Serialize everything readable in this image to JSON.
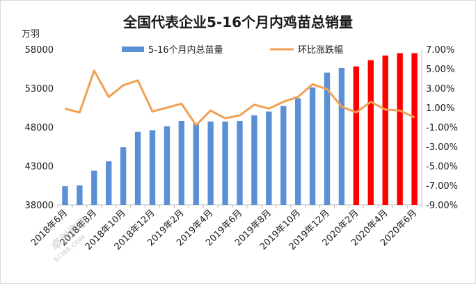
{
  "chart_data": {
    "type": "bar+line",
    "title": "全国代表企业5-16个月内鸡苗总销量",
    "ylabel_left": "万羽",
    "left_axis": {
      "min": 38000,
      "max": 58000,
      "ticks": [
        "38000",
        "43000",
        "48000",
        "53000",
        "58000"
      ]
    },
    "right_axis": {
      "min": -9,
      "max": 7,
      "ticks": [
        "-9.00%",
        "-7.00%",
        "-5.00%",
        "-3.00%",
        "-1.00%",
        "1.00%",
        "3.00%",
        "5.00%",
        "7.00%"
      ]
    },
    "categories": [
      "2018年6月",
      "2018年7月",
      "2018年8月",
      "2018年9月",
      "2018年10月",
      "2018年11月",
      "2018年12月",
      "2019年1月",
      "2019年2月",
      "2019年3月",
      "2019年4月",
      "2019年5月",
      "2019年6月",
      "2019年7月",
      "2019年8月",
      "2019年9月",
      "2019年10月",
      "2019年11月",
      "2019年12月",
      "2020年1月",
      "2020年2月",
      "2020年3月",
      "2020年4月",
      "2020年5月",
      "2020年6月"
    ],
    "x_tick_labels": [
      "2018年6月",
      "2018年8月",
      "2018年10月",
      "2018年12月",
      "2019年2月",
      "2019年4月",
      "2019年6月",
      "2019年8月",
      "2019年10月",
      "2019年12月",
      "2020年2月",
      "2020年4月",
      "2020年6月"
    ],
    "x_tick_indices": [
      0,
      2,
      4,
      6,
      8,
      10,
      12,
      14,
      16,
      18,
      20,
      22,
      24
    ],
    "series": [
      {
        "name": "5-16个月内总苗量",
        "axis": "left",
        "kind": "bar",
        "color": "#5b8fd6",
        "forecast_color": "#ff0000",
        "forecast_from_index": 20,
        "values": [
          40400,
          40500,
          42400,
          43600,
          45400,
          47400,
          47600,
          48100,
          48800,
          48500,
          48700,
          48700,
          48800,
          49500,
          50000,
          50700,
          51700,
          53100,
          55000,
          55600,
          55800,
          56600,
          57200,
          57500,
          57500
        ]
      },
      {
        "name": "环比涨跌幅",
        "axis": "right",
        "kind": "line",
        "color": "#f0a050",
        "values": [
          0.9,
          0.5,
          4.8,
          2.1,
          3.3,
          3.8,
          0.6,
          1.0,
          1.4,
          -0.8,
          0.7,
          -0.1,
          0.2,
          1.3,
          0.9,
          1.6,
          2.1,
          3.4,
          2.9,
          1.1,
          0.5,
          1.6,
          0.8,
          0.7,
          0.0
        ]
      }
    ]
  },
  "watermark": {
    "line1": "卓创资讯",
    "line2": "SCI99.COM"
  }
}
